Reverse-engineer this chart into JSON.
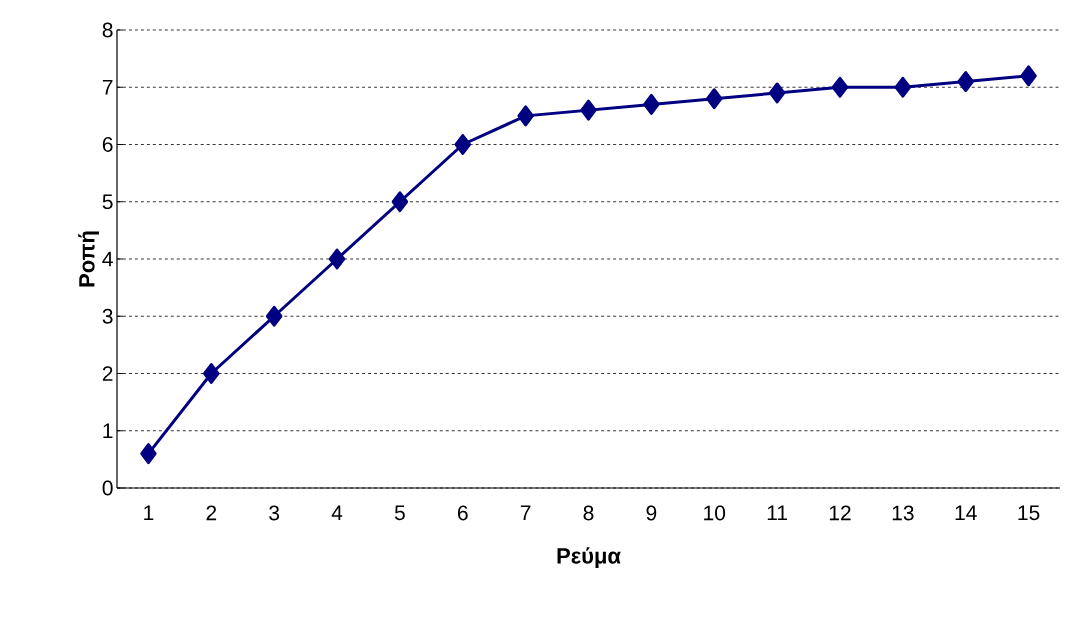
{
  "chart_data": {
    "type": "line",
    "xlabel": "Ρεύμα",
    "ylabel": "Ροπή",
    "categories": [
      "1",
      "2",
      "3",
      "4",
      "5",
      "6",
      "7",
      "8",
      "9",
      "10",
      "11",
      "12",
      "13",
      "14",
      "15"
    ],
    "series": [
      {
        "color": "#000080",
        "values": [
          0.6,
          2,
          3,
          4,
          5,
          6,
          6.5,
          6.6,
          6.7,
          6.8,
          6.9,
          7.0,
          7.0,
          7.1,
          7.2
        ]
      }
    ],
    "ylim": [
      0,
      8
    ],
    "yticks": [
      0,
      1,
      2,
      3,
      4,
      5,
      6,
      7,
      8
    ],
    "grid": "y",
    "marker": "diamond",
    "line_style": "solid",
    "legend": false
  }
}
